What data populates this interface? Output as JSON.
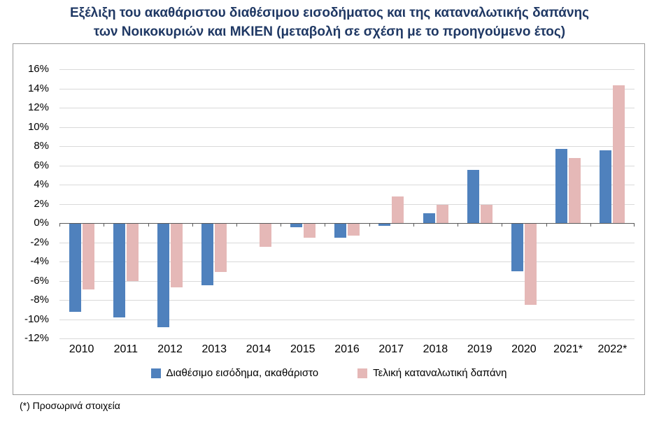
{
  "chart_data": {
    "type": "bar",
    "title": "Εξέλιξη του ακαθάριστου διαθέσιμου εισοδήματος και της καταναλωτικής δαπάνης των Νοικοκυριών και ΜΚΙΕΝ (μεταβολή σε σχέση με το προηγούμενο έτος)",
    "title_lines": [
      "Εξέλιξη του ακαθάριστου διαθέσιμου εισοδήματος και της καταναλωτικής δαπάνης",
      "των Νοικοκυριών και ΜΚΙΕΝ (μεταβολή σε σχέση με το προηγούμενο έτος)"
    ],
    "categories": [
      "2010",
      "2011",
      "2012",
      "2013",
      "2014",
      "2015",
      "2016",
      "2017",
      "2018",
      "2019",
      "2020",
      "2021*",
      "2022*"
    ],
    "series": [
      {
        "name": "Διαθέσιμο εισόδημα, ακαθάριστο",
        "color": "#4F81BD",
        "values": [
          -9.2,
          -9.8,
          -10.8,
          -6.5,
          -0.1,
          -0.4,
          -1.5,
          -0.3,
          1.0,
          5.5,
          -5.0,
          7.7,
          7.6
        ]
      },
      {
        "name": "Τελική καταναλωτική δαπάνη",
        "color": "#E5B8B7",
        "values": [
          -6.9,
          -6.0,
          -6.7,
          -5.1,
          -2.5,
          -1.5,
          -1.3,
          2.8,
          1.9,
          1.9,
          -8.5,
          6.8,
          14.3
        ]
      }
    ],
    "ylim": [
      -12,
      16
    ],
    "ytick_step": 2,
    "ytick_format": "percent",
    "grid": true,
    "legend_position": "bottom",
    "footnote": "(*) Προσωρινά στοιχεία"
  }
}
